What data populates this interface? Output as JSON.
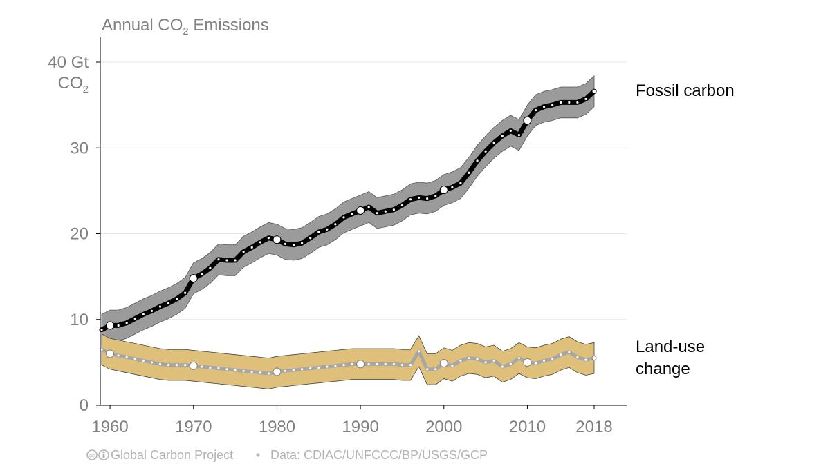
{
  "chart_data": {
    "type": "line",
    "title_main": "Annual CO",
    "title_sub": "2",
    "title_tail": " Emissions",
    "y_unit_line1": "40 Gt",
    "y_unit_line2_main": "CO",
    "y_unit_line2_sub": "2",
    "ylim": [
      0,
      40
    ],
    "xlim": [
      1959,
      2018
    ],
    "y_ticks": [
      "0",
      "10",
      "20",
      "30"
    ],
    "y_tick_values": [
      0,
      10,
      20,
      30
    ],
    "x_ticks": [
      "1960",
      "1970",
      "1980",
      "1990",
      "2000",
      "2010",
      "2018"
    ],
    "x_tick_values": [
      1960,
      1970,
      1980,
      1990,
      2000,
      2010,
      2018
    ],
    "grid": true,
    "x": [
      1959,
      1960,
      1961,
      1962,
      1963,
      1964,
      1965,
      1966,
      1967,
      1968,
      1969,
      1970,
      1971,
      1972,
      1973,
      1974,
      1975,
      1976,
      1977,
      1978,
      1979,
      1980,
      1981,
      1982,
      1983,
      1984,
      1985,
      1986,
      1987,
      1988,
      1989,
      1990,
      1991,
      1992,
      1993,
      1994,
      1995,
      1996,
      1997,
      1998,
      1999,
      2000,
      2001,
      2002,
      2003,
      2004,
      2005,
      2006,
      2007,
      2008,
      2009,
      2010,
      2011,
      2012,
      2013,
      2014,
      2015,
      2016,
      2017,
      2018
    ],
    "series": [
      {
        "name": "Fossil carbon",
        "label_lines": [
          "Fossil carbon"
        ],
        "colors": {
          "line": "#000000",
          "band": "#9b9b9b",
          "band_edge": "#555555",
          "dots": "#ffffff"
        },
        "values": [
          8.8,
          9.3,
          9.3,
          9.6,
          10.1,
          10.6,
          11.0,
          11.5,
          11.9,
          12.4,
          13.1,
          14.8,
          15.3,
          16.0,
          17.0,
          16.9,
          16.9,
          17.9,
          18.4,
          19.0,
          19.5,
          19.3,
          18.8,
          18.7,
          18.9,
          19.5,
          20.2,
          20.5,
          21.1,
          21.9,
          22.3,
          22.7,
          23.1,
          22.4,
          22.6,
          22.8,
          23.3,
          24.0,
          24.2,
          24.1,
          24.4,
          25.1,
          25.4,
          25.9,
          27.1,
          28.5,
          29.6,
          30.6,
          31.4,
          32.0,
          31.5,
          33.2,
          34.4,
          34.8,
          35.0,
          35.3,
          35.3,
          35.3,
          35.7,
          36.6
        ],
        "uncertainty": 1.8,
        "highlight_years": [
          1960,
          1970,
          1980,
          1990,
          2000,
          2010,
          2018
        ]
      },
      {
        "name": "Land-use change",
        "label_lines": [
          "Land-use",
          "change"
        ],
        "colors": {
          "line": "#a6a6a6",
          "band": "#dfc07a",
          "band_edge": "#444444",
          "dots": "#ffffff"
        },
        "values": [
          6.5,
          6.0,
          5.8,
          5.6,
          5.4,
          5.2,
          5.0,
          4.8,
          4.7,
          4.7,
          4.7,
          4.6,
          4.5,
          4.4,
          4.3,
          4.2,
          4.1,
          4.0,
          3.9,
          3.8,
          3.7,
          3.9,
          4.0,
          4.1,
          4.2,
          4.3,
          4.4,
          4.5,
          4.6,
          4.7,
          4.8,
          4.8,
          4.8,
          4.8,
          4.8,
          4.8,
          4.7,
          4.7,
          6.3,
          4.2,
          4.2,
          4.9,
          4.6,
          5.2,
          5.5,
          5.4,
          5.0,
          5.2,
          4.5,
          4.8,
          5.5,
          5.0,
          4.9,
          5.2,
          5.4,
          5.9,
          6.2,
          5.6,
          5.3,
          5.5
        ],
        "uncertainty": 1.8,
        "highlight_years": [
          1960,
          1970,
          1980,
          1990,
          2000,
          2010,
          2018
        ]
      }
    ],
    "footer_project": "Global Carbon Project",
    "footer_separator": "•",
    "footer_data": "Data: CDIAC/UNFCCC/BP/USGS/GCP",
    "colors": {
      "axis_text": "#808080",
      "grid": "#e8e8e8",
      "axis_line": "#000000",
      "footer": "#b3b3b3"
    }
  }
}
